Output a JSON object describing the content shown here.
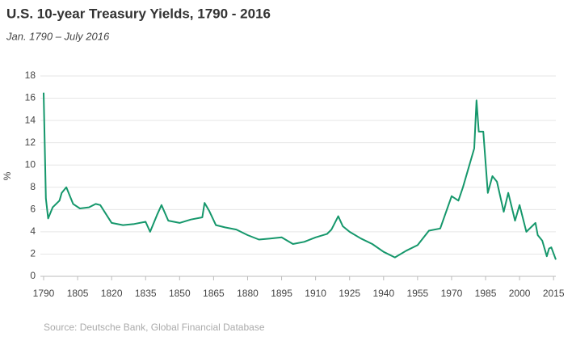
{
  "chart_data": {
    "type": "line",
    "title": "U.S. 10-year Treasury Yields, 1790 - 2016",
    "subtitle": "Jan. 1790 – July 2016",
    "y_label": "%",
    "source": "Source: Deutsche Bank, Global Financial Database",
    "x": [
      1790,
      1791,
      1792,
      1794,
      1797,
      1798,
      1800,
      1803,
      1806,
      1810,
      1813,
      1815,
      1820,
      1825,
      1830,
      1835,
      1837,
      1840,
      1842,
      1845,
      1850,
      1855,
      1860,
      1861,
      1863,
      1866,
      1870,
      1875,
      1880,
      1885,
      1890,
      1895,
      1900,
      1905,
      1910,
      1915,
      1917,
      1920,
      1922,
      1925,
      1930,
      1935,
      1940,
      1945,
      1950,
      1955,
      1960,
      1965,
      1970,
      1973,
      1975,
      1980,
      1981,
      1982,
      1984,
      1986,
      1988,
      1990,
      1993,
      1995,
      1998,
      2000,
      2003,
      2007,
      2008,
      2010,
      2012,
      2013,
      2014,
      2016
    ],
    "series": [
      {
        "name": "U.S. 10-year Treasury Yield",
        "color": "#15976b",
        "values": [
          16.5,
          7,
          5.2,
          6.2,
          6.8,
          7.5,
          8,
          6.5,
          6.1,
          6.2,
          6.5,
          6.4,
          4.8,
          4.6,
          4.7,
          4.9,
          4.0,
          5.5,
          6.4,
          5.0,
          4.8,
          5.1,
          5.3,
          6.6,
          5.9,
          4.6,
          4.4,
          4.2,
          3.7,
          3.3,
          3.4,
          3.5,
          2.9,
          3.1,
          3.5,
          3.8,
          4.2,
          5.4,
          4.5,
          4.0,
          3.4,
          2.9,
          2.2,
          1.7,
          2.3,
          2.8,
          4.1,
          4.3,
          7.2,
          6.8,
          8.0,
          11.5,
          15.8,
          13,
          13,
          7.5,
          9,
          8.5,
          5.8,
          7.5,
          5.0,
          6.4,
          4.0,
          4.8,
          3.7,
          3.2,
          1.8,
          2.5,
          2.6,
          1.5
        ]
      }
    ],
    "xlim": [
      1790,
      2016
    ],
    "xticks": [
      1790,
      1805,
      1820,
      1835,
      1850,
      1865,
      1880,
      1895,
      1910,
      1925,
      1940,
      1955,
      1970,
      1985,
      2000,
      2015
    ],
    "ylim": [
      0,
      18
    ],
    "yticks": [
      0,
      2,
      4,
      6,
      8,
      10,
      12,
      14,
      16,
      18
    ],
    "grid": true
  }
}
